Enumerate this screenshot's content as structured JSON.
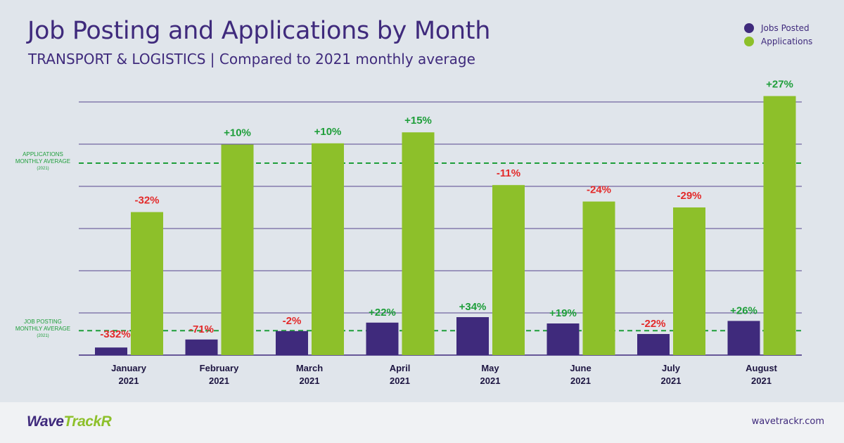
{
  "header": {
    "title": "Job Posting and Applications by Month",
    "subtitle": "TRANSPORT & LOGISTICS | Compared to 2021 monthly average"
  },
  "legend": {
    "items": [
      {
        "label": "Jobs Posted",
        "color": "#3f2a7c"
      },
      {
        "label": "Applications",
        "color": "#8dc02a"
      }
    ]
  },
  "colors": {
    "jobs": "#3f2a7c",
    "applications": "#8dc02a",
    "positive": "#1e9e3a",
    "negative": "#e32a2a",
    "gridline": "#3f2a7c",
    "avg_line": "#1e9e3a"
  },
  "chart_data": {
    "type": "bar",
    "categories": [
      "January 2021",
      "February 2021",
      "March 2021",
      "April 2021",
      "May 2021",
      "June 2021",
      "July 2021",
      "August 2021"
    ],
    "series": [
      {
        "name": "Jobs Posted",
        "values": [
          0.18,
          0.37,
          0.57,
          0.77,
          0.9,
          0.75,
          0.5,
          0.81
        ],
        "labels": [
          "-332%",
          "-71%",
          "-2%",
          "+22%",
          "+34%",
          "+19%",
          "-22%",
          "+26%"
        ]
      },
      {
        "name": "Applications",
        "values": [
          3.39,
          4.99,
          5.02,
          5.28,
          4.03,
          3.64,
          3.5,
          6.14
        ],
        "labels": [
          "-32%",
          "+10%",
          "+10%",
          "+15%",
          "-11%",
          "-24%",
          "-29%",
          "+27%"
        ]
      }
    ],
    "ylim": [
      0,
      6.5
    ],
    "grid": true,
    "reference_lines": [
      {
        "label": [
          "APPLICATIONS",
          "MONTHLY AVERAGE",
          "(2021)"
        ],
        "value": 4.55
      },
      {
        "label": [
          "JOB POSTING",
          "MONTHLY AVERAGE",
          "(2021)"
        ],
        "value": 0.58
      }
    ],
    "legend_position": "top-right"
  },
  "footer": {
    "brand_part1": "Wave",
    "brand_part2": "TrackR",
    "website": "wavetrackr.com"
  }
}
